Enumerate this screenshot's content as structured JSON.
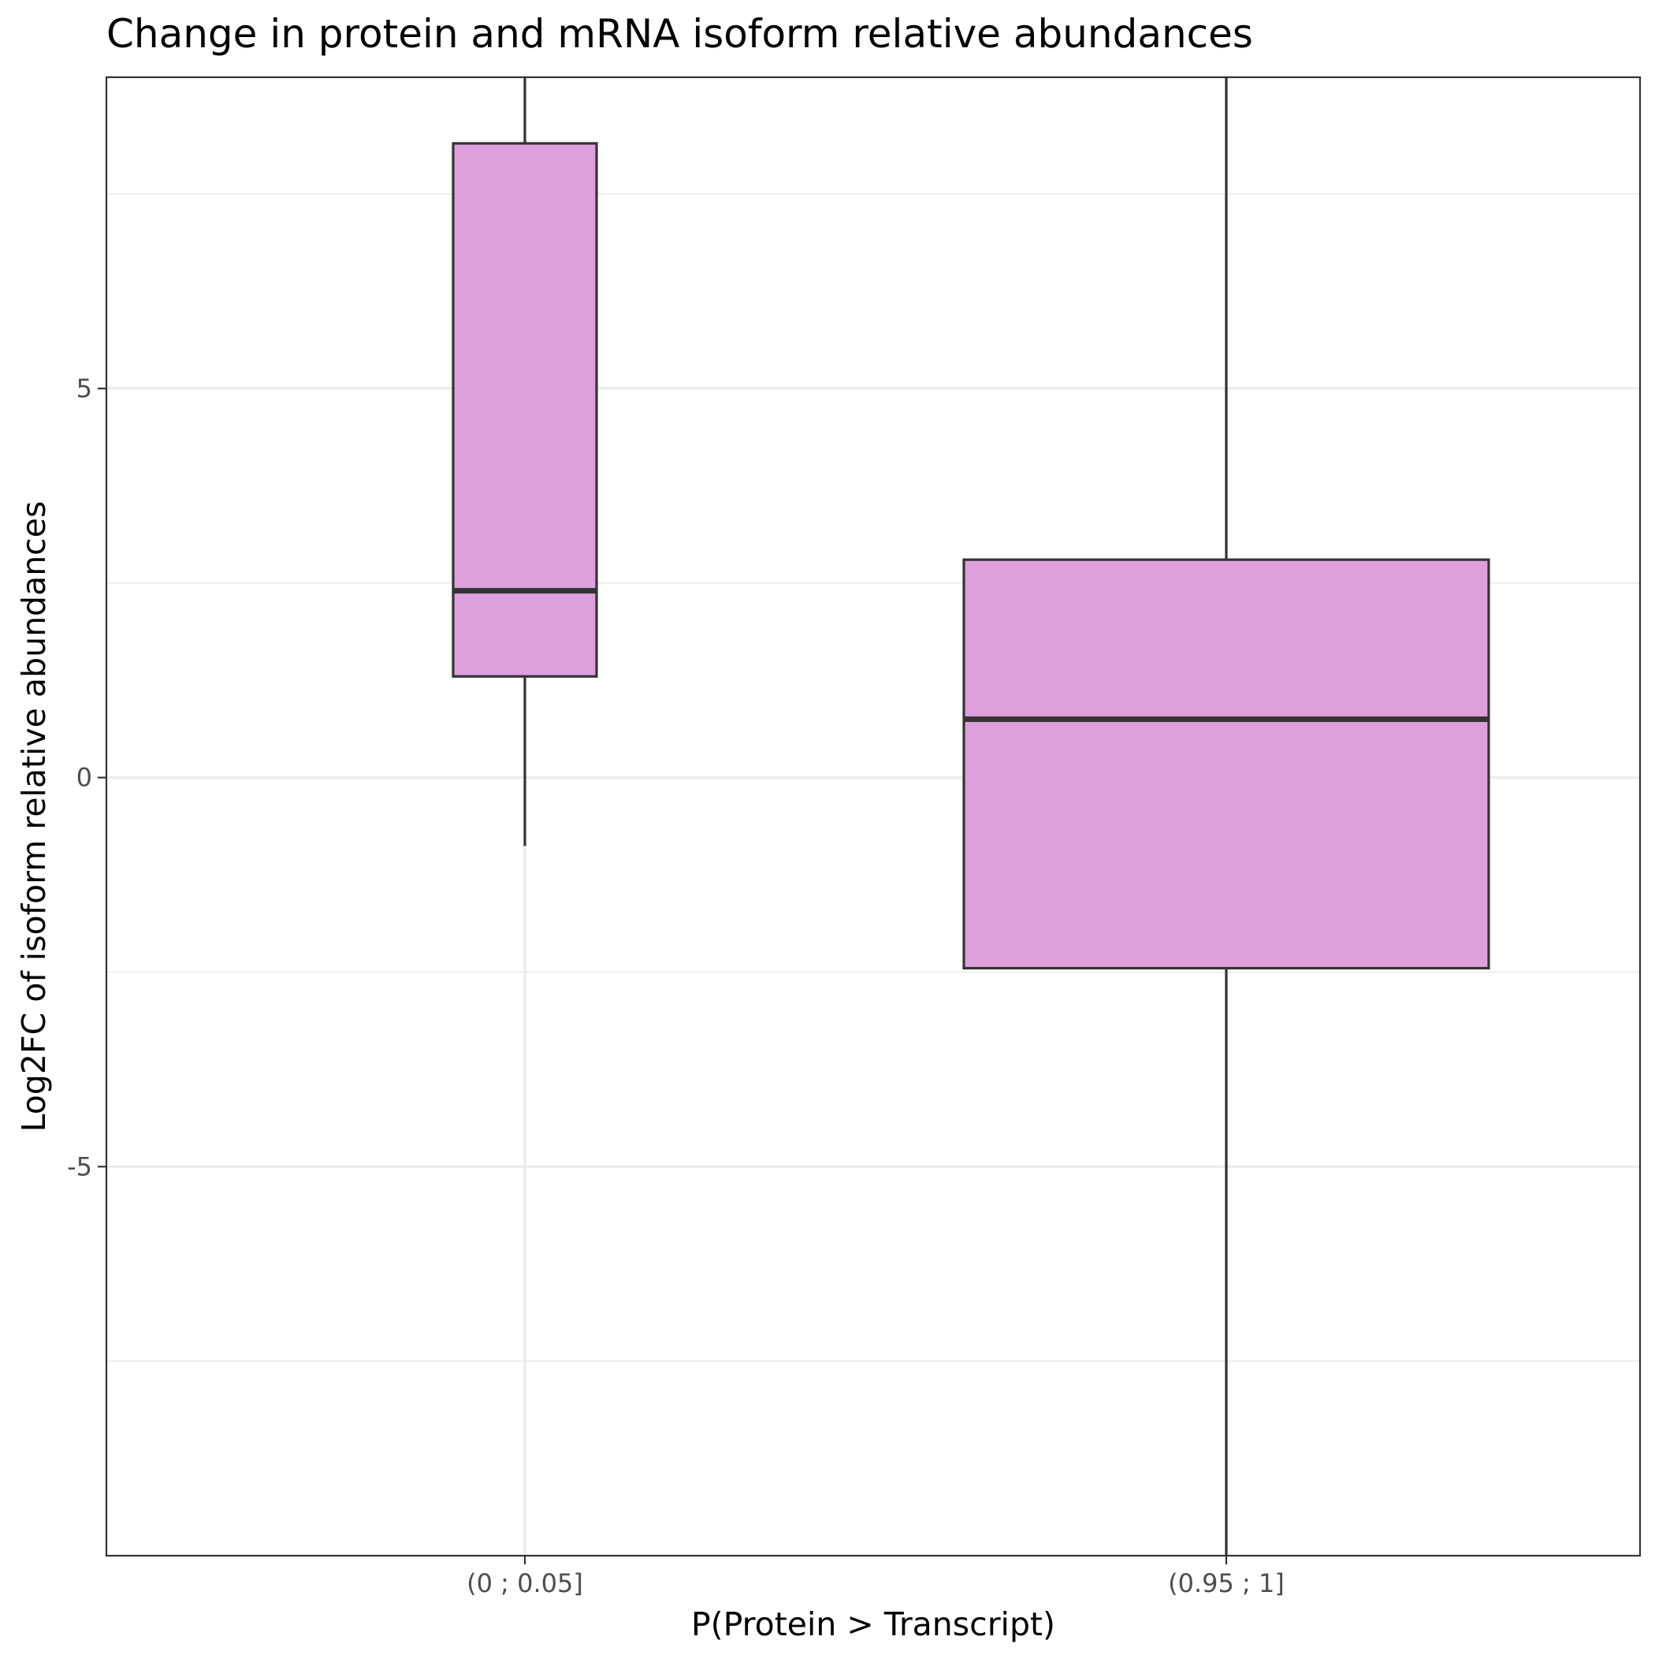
{
  "chart_data": {
    "type": "boxplot",
    "title": "Change in protein and mRNA isoform relative abundances",
    "xlabel": "P(Protein > Transcript)",
    "ylabel": "Log2FC of isoform relative abundances",
    "categories": [
      "(0 ; 0.05]",
      "(0.95 ; 1]"
    ],
    "boxes": [
      {
        "category": "(0 ; 0.05]",
        "whisker_low": -0.88,
        "q1": 1.3,
        "median": 2.4,
        "q3": 8.15,
        "whisker_high": 9.0
      },
      {
        "category": "(0.95 ; 1]",
        "whisker_low": -10.0,
        "q1": -2.45,
        "median": 0.75,
        "q3": 2.8,
        "whisker_high": 9.0
      }
    ],
    "ylim": [
      -10,
      9
    ],
    "yticks": [
      -5,
      0,
      5
    ],
    "ytick_labels": [
      "-5",
      "0",
      "5"
    ],
    "fill_color": "#dda0dd",
    "grid": true,
    "legend": "none"
  }
}
